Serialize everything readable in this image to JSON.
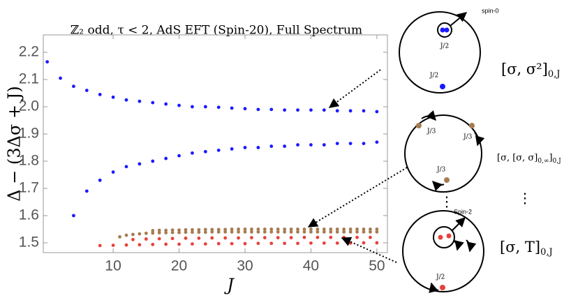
{
  "chart_data": {
    "type": "scatter",
    "title": "ℤ₂ odd,  τ < 2,  AdS EFT (Spin-20), Full Spectrum",
    "x_label": "J",
    "y_label": "Δ − (3Δσ + J)",
    "xlim": [
      -0.6,
      51.6
    ],
    "ylim": [
      1.464,
      2.264
    ],
    "xticks": [
      10,
      20,
      30,
      40,
      50
    ],
    "yticks": [
      1.5,
      1.6,
      1.7,
      1.8,
      1.9,
      {
        "value": 2,
        "label": "2.0"
      },
      2.1,
      2.2
    ],
    "series": [
      {
        "color": "#1a1aff",
        "x": [
          0,
          2,
          4,
          6,
          8,
          10,
          12,
          14,
          16,
          18,
          20,
          22,
          24,
          26,
          28,
          30,
          32,
          34,
          36,
          38,
          40,
          42,
          44,
          46,
          48,
          50
        ],
        "values": [
          2.165,
          2.105,
          2.075,
          2.06,
          2.045,
          2.035,
          2.025,
          2.02,
          2.015,
          2.01,
          2.005,
          2.0,
          2.0,
          1.998,
          1.995,
          1.993,
          1.99,
          1.99,
          1.988,
          1.988,
          1.988,
          1.988,
          1.985,
          1.985,
          1.985,
          1.982
        ]
      },
      {
        "color": "#1a1aff",
        "x": [
          4,
          6,
          8,
          10,
          12,
          14,
          16,
          18,
          20,
          22,
          24,
          26,
          28,
          30,
          32,
          34,
          36,
          38,
          40,
          42,
          44,
          46,
          48,
          50
        ],
        "values": [
          1.6,
          1.69,
          1.73,
          1.76,
          1.78,
          1.79,
          1.8,
          1.81,
          1.82,
          1.83,
          1.835,
          1.84,
          1.845,
          1.85,
          1.85,
          1.855,
          1.855,
          1.86,
          1.86,
          1.86,
          1.865,
          1.865,
          1.865,
          1.87
        ]
      },
      {
        "color": "#a57c52",
        "x": [
          11,
          12,
          13,
          14,
          15,
          16,
          17,
          18,
          19,
          20,
          21,
          22,
          23,
          24,
          25,
          26,
          27,
          28,
          29,
          30,
          31,
          32,
          33,
          34,
          35,
          36,
          37,
          38,
          39,
          40,
          41,
          42,
          43,
          44,
          45,
          46,
          47,
          48,
          49,
          50
        ],
        "values": [
          1.522,
          1.528,
          1.531,
          1.533,
          1.535,
          1.536,
          1.537,
          1.537,
          1.538,
          1.538,
          1.539,
          1.539,
          1.539,
          1.539,
          1.54,
          1.54,
          1.54,
          1.54,
          1.54,
          1.54,
          1.54,
          1.54,
          1.54,
          1.54,
          1.54,
          1.54,
          1.54,
          1.54,
          1.54,
          1.54,
          1.54,
          1.54,
          1.54,
          1.54,
          1.54,
          1.54,
          1.54,
          1.54,
          1.54,
          1.54
        ]
      },
      {
        "color": "#a57c52",
        "x": [
          16,
          17,
          18,
          19,
          20,
          21,
          22,
          23,
          24,
          25,
          26,
          27,
          28,
          29,
          30,
          31,
          32,
          33,
          34,
          35,
          36,
          37,
          38,
          39,
          40,
          41,
          42,
          43,
          44,
          45,
          46,
          47,
          48,
          49,
          50
        ],
        "values": [
          1.545,
          1.546,
          1.546,
          1.547,
          1.547,
          1.548,
          1.548,
          1.548,
          1.549,
          1.549,
          1.549,
          1.549,
          1.55,
          1.55,
          1.55,
          1.55,
          1.55,
          1.55,
          1.55,
          1.55,
          1.55,
          1.55,
          1.55,
          1.55,
          1.55,
          1.55,
          1.55,
          1.55,
          1.55,
          1.55,
          1.55,
          1.55,
          1.55,
          1.55,
          1.55
        ]
      },
      {
        "color": "#e8413c",
        "x": [
          8,
          10,
          12,
          14,
          16,
          18,
          20,
          22,
          24,
          26,
          28,
          30,
          32,
          34,
          36,
          38,
          40,
          42,
          44,
          46,
          48,
          50
        ],
        "values": [
          1.49,
          1.491,
          1.492,
          1.493,
          1.494,
          1.495,
          1.495,
          1.496,
          1.496,
          1.497,
          1.497,
          1.497,
          1.498,
          1.498,
          1.498,
          1.498,
          1.499,
          1.499,
          1.499,
          1.499,
          1.5,
          1.5
        ]
      },
      {
        "color": "#e8413c",
        "x": [
          13,
          15,
          17,
          19,
          21,
          23,
          25,
          27,
          29,
          31,
          33,
          35,
          37,
          39,
          41,
          43,
          45,
          47,
          49
        ],
        "values": [
          1.512,
          1.514,
          1.515,
          1.516,
          1.517,
          1.517,
          1.518,
          1.518,
          1.518,
          1.519,
          1.519,
          1.519,
          1.519,
          1.52,
          1.52,
          1.52,
          1.52,
          1.52,
          1.52
        ]
      }
    ]
  },
  "diagrams": {
    "top": {
      "spin_label": "spin-0",
      "frac": "J/2",
      "frac2": "J/2",
      "label": {
        "main": "[σ, σ²]",
        "sub": "0,J"
      }
    },
    "middle": {
      "frac": "J/3",
      "frac2": "J/3",
      "frac3": "J/3",
      "label": {
        "main": "[σ, [σ, σ]",
        "sub1": "0,∞",
        "close": "]",
        "sub": "0,J"
      }
    },
    "dots": "⋮",
    "bottom": {
      "spin_label": "Spin-2",
      "frac": "J/2",
      "label": {
        "main": "[σ, T]",
        "sub": "0,J"
      }
    }
  }
}
